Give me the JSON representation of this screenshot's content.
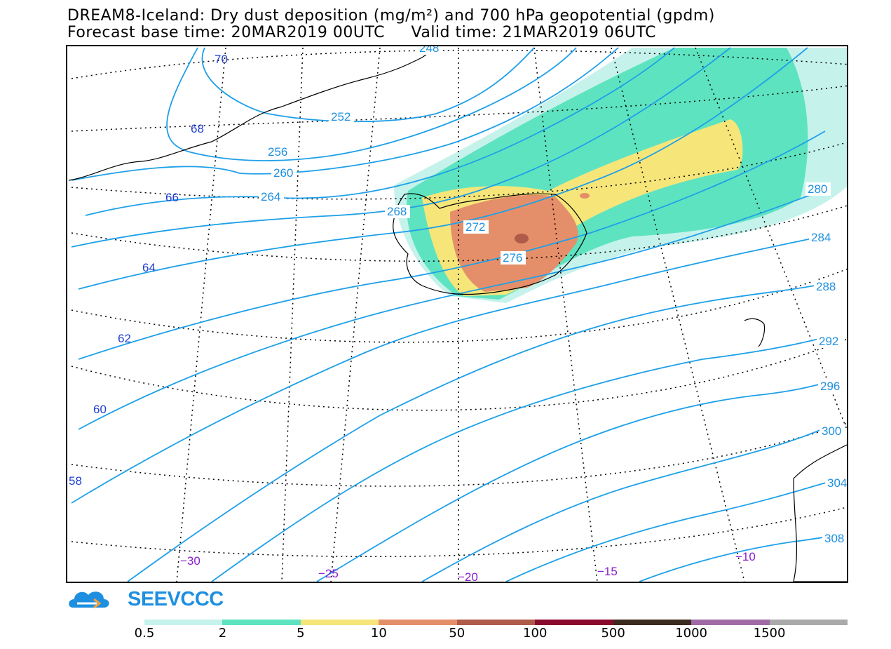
{
  "header": {
    "title_line1": "DREAM8-Iceland: Dry dust deposition (mg/m²) and 700 hPa geopotential (gpdm)",
    "forecast_label": "Forecast base time: 20MAR2019 00UTC",
    "valid_label": "Valid time: 21MAR2019 06UTC"
  },
  "map": {
    "latitude_labels": [
      "70",
      "68",
      "66",
      "64",
      "62",
      "60",
      "58"
    ],
    "longitude_labels": [
      "−30",
      "−25",
      "−20",
      "−15",
      "−10"
    ],
    "geopotential_labels": [
      "252",
      "256",
      "260",
      "264",
      "268",
      "272",
      "276",
      "280",
      "284",
      "288",
      "292",
      "296",
      "300",
      "304",
      "308",
      "248"
    ],
    "contour_color": "#1ea0e8",
    "graticule_color": "#000000"
  },
  "logo": {
    "text": "SEEVCCC",
    "icon": "cloud-logo-icon",
    "color": "#1e8fe0"
  },
  "legend": {
    "tick_labels": [
      "0.5",
      "2",
      "5",
      "10",
      "50",
      "100",
      "500",
      "1000",
      "1500"
    ],
    "colors": [
      "#c6f2ec",
      "#5ee3c0",
      "#f6e67a",
      "#e58f6a",
      "#b05a4a",
      "#8a0a2e",
      "#3c2a1e",
      "#a06aa6",
      "#aaaaaa"
    ]
  }
}
